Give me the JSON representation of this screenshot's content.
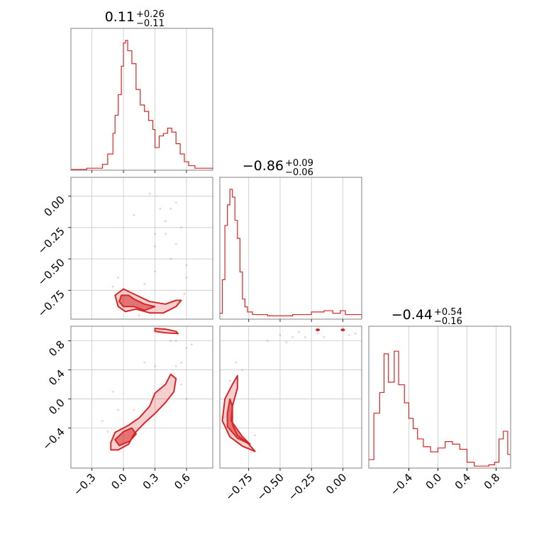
{
  "chart_data": {
    "type": "corner",
    "color": "#d62728",
    "grid": true,
    "params": [
      {
        "title_value": "0.11",
        "title_plus": "+0.26",
        "title_minus": "−0.11",
        "range": [
          -0.5,
          0.85
        ],
        "ticks": [
          -0.3,
          0.0,
          0.3,
          0.6
        ],
        "tick_labels": [
          "−0.3",
          "0.0",
          "0.3",
          "0.6"
        ],
        "hist": [
          [
            -0.5,
            0
          ],
          [
            -0.35,
            0.01
          ],
          [
            -0.2,
            0.04
          ],
          [
            -0.15,
            0.12
          ],
          [
            -0.1,
            0.28
          ],
          [
            -0.08,
            0.42
          ],
          [
            -0.05,
            0.58
          ],
          [
            -0.02,
            0.8
          ],
          [
            0.0,
            0.98
          ],
          [
            0.02,
            1.0
          ],
          [
            0.04,
            0.92
          ],
          [
            0.08,
            0.82
          ],
          [
            0.12,
            0.62
          ],
          [
            0.16,
            0.5
          ],
          [
            0.2,
            0.45
          ],
          [
            0.24,
            0.38
          ],
          [
            0.28,
            0.31
          ],
          [
            0.3,
            0.17
          ],
          [
            0.34,
            0.26
          ],
          [
            0.38,
            0.28
          ],
          [
            0.42,
            0.32
          ],
          [
            0.46,
            0.29
          ],
          [
            0.5,
            0.2
          ],
          [
            0.54,
            0.12
          ],
          [
            0.58,
            0.06
          ],
          [
            0.62,
            0.03
          ],
          [
            0.68,
            0.01
          ],
          [
            0.85,
            0
          ]
        ]
      },
      {
        "title_value": "−0.86",
        "title_plus": "+0.09",
        "title_minus": "−0.06",
        "range": [
          -0.98,
          0.15
        ],
        "ticks": [
          -0.75,
          -0.5,
          -0.25,
          0.0
        ],
        "tick_labels": [
          "−0.75",
          "−0.50",
          "−0.25",
          "0.00"
        ],
        "hist": [
          [
            -0.98,
            0.04
          ],
          [
            -0.96,
            0.3
          ],
          [
            -0.94,
            0.72
          ],
          [
            -0.92,
            0.88
          ],
          [
            -0.9,
            1.0
          ],
          [
            -0.88,
            0.94
          ],
          [
            -0.86,
            0.76
          ],
          [
            -0.84,
            0.62
          ],
          [
            -0.82,
            0.36
          ],
          [
            -0.8,
            0.15
          ],
          [
            -0.78,
            0.09
          ],
          [
            -0.76,
            0.05
          ],
          [
            -0.72,
            0.03
          ],
          [
            -0.6,
            0.02
          ],
          [
            -0.4,
            0.03
          ],
          [
            -0.25,
            0.05
          ],
          [
            -0.15,
            0.06
          ],
          [
            -0.08,
            0.04
          ],
          [
            -0.02,
            0.06
          ],
          [
            0.02,
            0.03
          ],
          [
            0.15,
            0
          ]
        ]
      },
      {
        "title_value": "−0.44",
        "title_plus": "+0.54",
        "title_minus": "−0.16",
        "range": [
          -0.95,
          1.0
        ],
        "ticks": [
          -0.4,
          0.0,
          0.4,
          0.8
        ],
        "tick_labels": [
          "−0.4",
          "0.0",
          "0.4",
          "0.8"
        ],
        "hist": [
          [
            -0.95,
            0.06
          ],
          [
            -0.88,
            0.42
          ],
          [
            -0.8,
            0.58
          ],
          [
            -0.74,
            0.88
          ],
          [
            -0.68,
            0.66
          ],
          [
            -0.6,
            0.9
          ],
          [
            -0.54,
            0.64
          ],
          [
            -0.46,
            0.5
          ],
          [
            -0.4,
            0.38
          ],
          [
            -0.34,
            0.3
          ],
          [
            -0.28,
            0.22
          ],
          [
            -0.2,
            0.16
          ],
          [
            -0.1,
            0.12
          ],
          [
            0.0,
            0.15
          ],
          [
            0.1,
            0.2
          ],
          [
            0.2,
            0.18
          ],
          [
            0.3,
            0.14
          ],
          [
            0.4,
            0.04
          ],
          [
            0.5,
            0.01
          ],
          [
            0.6,
            0.01
          ],
          [
            0.7,
            0.02
          ],
          [
            0.78,
            0.04
          ],
          [
            0.84,
            0.22
          ],
          [
            0.9,
            0.28
          ],
          [
            0.96,
            0.1
          ]
        ]
      }
    ],
    "panels": [
      {
        "x_param": 0,
        "y_param": 1,
        "contours": [
          {
            "level": "outer",
            "points": [
              [
                -0.08,
                -0.79
              ],
              [
                0.0,
                -0.74
              ],
              [
                0.1,
                -0.78
              ],
              [
                0.25,
                -0.84
              ],
              [
                0.4,
                -0.86
              ],
              [
                0.5,
                -0.83
              ],
              [
                0.55,
                -0.83
              ],
              [
                0.5,
                -0.88
              ],
              [
                0.38,
                -0.93
              ],
              [
                0.25,
                -0.93
              ],
              [
                0.12,
                -0.9
              ],
              [
                0.02,
                -0.92
              ],
              [
                -0.05,
                -0.88
              ]
            ]
          },
          {
            "level": "inner",
            "points": [
              [
                -0.02,
                -0.79
              ],
              [
                0.05,
                -0.79
              ],
              [
                0.1,
                -0.82
              ],
              [
                0.2,
                -0.86
              ],
              [
                0.3,
                -0.88
              ],
              [
                0.2,
                -0.91
              ],
              [
                0.1,
                -0.88
              ],
              [
                0.0,
                -0.88
              ],
              [
                -0.04,
                -0.84
              ]
            ]
          }
        ],
        "scatter": [
          [
            0.1,
            -0.15
          ],
          [
            0.35,
            -0.1
          ],
          [
            0.4,
            -0.3
          ],
          [
            0.45,
            -0.5
          ],
          [
            0.3,
            -0.3
          ],
          [
            0.5,
            -0.05
          ],
          [
            0.3,
            -0.4
          ],
          [
            0.6,
            -0.55
          ],
          [
            0.55,
            -0.25
          ],
          [
            -0.05,
            -0.65
          ],
          [
            0.2,
            -0.7
          ],
          [
            0.25,
            0.02
          ],
          [
            0.4,
            -0.2
          ],
          [
            0.5,
            -0.38
          ],
          [
            0.45,
            -0.1
          ],
          [
            0.3,
            -0.6
          ],
          [
            0.6,
            -0.65
          ],
          [
            -0.1,
            -0.72
          ],
          [
            0.15,
            -0.95
          ],
          [
            0.58,
            -0.78
          ]
        ]
      },
      {
        "x_param": 0,
        "y_param": 2,
        "contours": [
          {
            "level": "outer",
            "points": [
              [
                -0.12,
                -0.6
              ],
              [
                -0.08,
                -0.46
              ],
              [
                0.05,
                -0.36
              ],
              [
                0.15,
                -0.26
              ],
              [
                0.25,
                -0.1
              ],
              [
                0.3,
                0.08
              ],
              [
                0.4,
                0.2
              ],
              [
                0.45,
                0.34
              ],
              [
                0.5,
                0.28
              ],
              [
                0.48,
                0.1
              ],
              [
                0.4,
                -0.05
              ],
              [
                0.3,
                -0.2
              ],
              [
                0.2,
                -0.33
              ],
              [
                0.1,
                -0.48
              ],
              [
                0.05,
                -0.62
              ],
              [
                -0.05,
                -0.7
              ],
              [
                -0.12,
                -0.7
              ]
            ]
          },
          {
            "level": "inner",
            "points": [
              [
                -0.08,
                -0.56
              ],
              [
                0.0,
                -0.45
              ],
              [
                0.08,
                -0.4
              ],
              [
                0.12,
                -0.48
              ],
              [
                0.06,
                -0.58
              ],
              [
                -0.04,
                -0.64
              ]
            ]
          },
          {
            "level": "outer",
            "points": [
              [
                0.3,
                0.97
              ],
              [
                0.4,
                0.96
              ],
              [
                0.5,
                0.93
              ],
              [
                0.52,
                0.9
              ],
              [
                0.4,
                0.91
              ],
              [
                0.3,
                0.93
              ]
            ]
          }
        ],
        "scatter": [
          [
            0.5,
            0.8
          ],
          [
            0.6,
            0.7
          ],
          [
            -0.1,
            0.1
          ],
          [
            0.55,
            0.5
          ],
          [
            0.2,
            0.5
          ],
          [
            -0.2,
            -0.3
          ],
          [
            0.6,
            0.0
          ],
          [
            0.1,
            -0.15
          ],
          [
            0.55,
            0.2
          ],
          [
            -0.15,
            -0.45
          ],
          [
            0.45,
            0.8
          ],
          [
            0.65,
            0.75
          ],
          [
            0.3,
            0.45
          ],
          [
            -0.05,
            -0.15
          ],
          [
            0.5,
            0.45
          ]
        ]
      },
      {
        "x_param": 1,
        "y_param": 2,
        "contours": [
          {
            "level": "outer",
            "points": [
              [
                -0.94,
                0.0
              ],
              [
                -0.88,
                0.2
              ],
              [
                -0.84,
                0.32
              ],
              [
                -0.84,
                0.15
              ],
              [
                -0.88,
                -0.1
              ],
              [
                -0.88,
                -0.35
              ],
              [
                -0.84,
                -0.5
              ],
              [
                -0.75,
                -0.62
              ],
              [
                -0.7,
                -0.72
              ],
              [
                -0.8,
                -0.65
              ],
              [
                -0.9,
                -0.52
              ],
              [
                -0.96,
                -0.3
              ]
            ]
          },
          {
            "level": "inner",
            "points": [
              [
                -0.92,
                -0.2
              ],
              [
                -0.9,
                0.0
              ],
              [
                -0.88,
                -0.1
              ],
              [
                -0.89,
                -0.3
              ],
              [
                -0.8,
                -0.52
              ],
              [
                -0.74,
                -0.62
              ],
              [
                -0.84,
                -0.54
              ],
              [
                -0.92,
                -0.38
              ]
            ]
          }
        ],
        "spots": [
          [
            -0.2,
            0.95
          ],
          [
            0.0,
            0.95
          ]
        ],
        "scatter": [
          [
            -0.6,
            0.8
          ],
          [
            -0.4,
            0.85
          ],
          [
            -0.2,
            0.9
          ],
          [
            0.1,
            0.9
          ],
          [
            -0.3,
            0.85
          ],
          [
            -0.45,
            0.78
          ],
          [
            -0.8,
            0.4
          ],
          [
            -0.85,
            0.5
          ],
          [
            -0.7,
            -0.5
          ],
          [
            -0.15,
            0.85
          ],
          [
            0.05,
            0.88
          ],
          [
            -0.5,
            0.88
          ],
          [
            -0.35,
            0.92
          ],
          [
            -0.9,
            0.25
          ]
        ]
      }
    ]
  }
}
